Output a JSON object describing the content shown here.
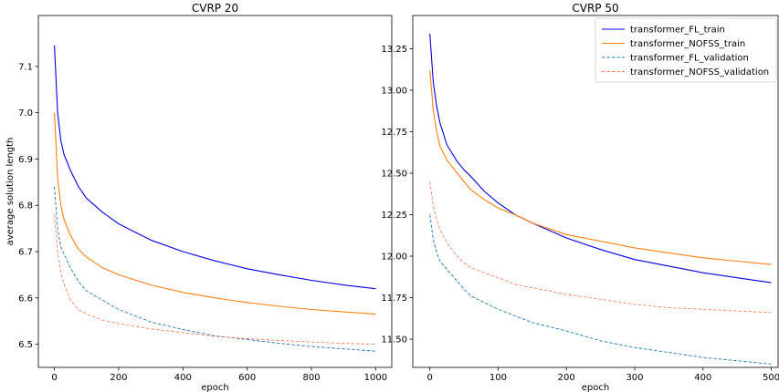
{
  "colors": {
    "fl_train": "#0000dd",
    "nofss_train": "#ff7f0e",
    "fl_validation": "#1f77b4",
    "nofss_validation": "#f4845f"
  },
  "chart_data": [
    {
      "type": "line",
      "title": "CVRP 20",
      "xlabel": "epoch",
      "ylabel": "average solution length",
      "xlim": [
        -50,
        1050
      ],
      "ylim": [
        6.45,
        7.21
      ],
      "xticks": [
        0,
        200,
        400,
        600,
        800,
        1000
      ],
      "yticks": [
        6.5,
        6.6,
        6.7,
        6.8,
        6.9,
        7.0,
        7.1
      ],
      "ytick_labels": [
        "6.5",
        "6.6",
        "6.7",
        "6.8",
        "6.9",
        "7.0",
        "7.1"
      ],
      "grid": false,
      "series": [
        {
          "name": "transformer_FL_train",
          "key": "fl_train",
          "style": "solid",
          "x": [
            0,
            10,
            20,
            30,
            50,
            75,
            100,
            150,
            200,
            300,
            400,
            500,
            600,
            700,
            800,
            900,
            1000
          ],
          "y": [
            7.145,
            7.0,
            6.94,
            6.91,
            6.875,
            6.84,
            6.815,
            6.785,
            6.76,
            6.725,
            6.7,
            6.68,
            6.663,
            6.65,
            6.638,
            6.628,
            6.62
          ]
        },
        {
          "name": "transformer_NOFSS_train",
          "key": "nofss_train",
          "style": "solid",
          "x": [
            0,
            10,
            20,
            30,
            50,
            75,
            100,
            150,
            200,
            300,
            400,
            500,
            600,
            700,
            800,
            900,
            1000
          ],
          "y": [
            7.0,
            6.86,
            6.8,
            6.77,
            6.735,
            6.705,
            6.688,
            6.665,
            6.65,
            6.628,
            6.612,
            6.6,
            6.59,
            6.582,
            6.575,
            6.57,
            6.565
          ]
        },
        {
          "name": "transformer_FL_validation",
          "key": "fl_validation",
          "style": "dashed",
          "x": [
            0,
            10,
            20,
            30,
            50,
            75,
            100,
            150,
            200,
            300,
            400,
            500,
            600,
            700,
            800,
            900,
            1000
          ],
          "y": [
            6.84,
            6.75,
            6.71,
            6.695,
            6.665,
            6.635,
            6.615,
            6.595,
            6.575,
            6.548,
            6.532,
            6.518,
            6.51,
            6.502,
            6.495,
            6.49,
            6.485
          ]
        },
        {
          "name": "transformer_NOFSS_validation",
          "key": "nofss_validation",
          "style": "dashed",
          "x": [
            0,
            10,
            20,
            30,
            50,
            75,
            100,
            150,
            200,
            300,
            400,
            500,
            600,
            700,
            800,
            900,
            1000
          ],
          "y": [
            6.78,
            6.7,
            6.655,
            6.63,
            6.595,
            6.575,
            6.565,
            6.552,
            6.545,
            6.533,
            6.525,
            6.517,
            6.512,
            6.508,
            6.505,
            6.502,
            6.5
          ]
        }
      ]
    },
    {
      "type": "line",
      "title": "CVRP 50",
      "xlabel": "epoch",
      "ylabel": "",
      "xlim": [
        -25,
        510
      ],
      "ylim": [
        11.33,
        13.45
      ],
      "xticks": [
        0,
        100,
        200,
        300,
        400,
        500
      ],
      "yticks": [
        11.5,
        11.75,
        12.0,
        12.25,
        12.5,
        12.75,
        13.0,
        13.25
      ],
      "ytick_labels": [
        "11.50",
        "11.75",
        "12.00",
        "12.25",
        "12.50",
        "12.75",
        "13.00",
        "13.25"
      ],
      "grid": false,
      "legend": "top-right",
      "series": [
        {
          "name": "transformer_FL_train",
          "key": "fl_train",
          "style": "solid",
          "x": [
            0,
            5,
            10,
            15,
            25,
            40,
            50,
            60,
            80,
            100,
            125,
            150,
            200,
            250,
            300,
            350,
            400,
            450,
            500
          ],
          "y": [
            13.34,
            13.05,
            12.9,
            12.8,
            12.67,
            12.57,
            12.52,
            12.48,
            12.39,
            12.32,
            12.25,
            12.2,
            12.11,
            12.04,
            11.98,
            11.94,
            11.9,
            11.87,
            11.84
          ]
        },
        {
          "name": "transformer_NOFSS_train",
          "key": "nofss_train",
          "style": "solid",
          "x": [
            0,
            5,
            10,
            15,
            25,
            40,
            50,
            60,
            80,
            100,
            125,
            150,
            200,
            250,
            300,
            350,
            400,
            450,
            500
          ],
          "y": [
            13.12,
            12.88,
            12.75,
            12.66,
            12.58,
            12.5,
            12.45,
            12.4,
            12.34,
            12.29,
            12.25,
            12.2,
            12.13,
            12.09,
            12.05,
            12.02,
            11.99,
            11.97,
            11.95
          ]
        },
        {
          "name": "transformer_FL_validation",
          "key": "fl_validation",
          "style": "dashed",
          "x": [
            0,
            5,
            10,
            15,
            25,
            40,
            50,
            60,
            80,
            100,
            125,
            150,
            200,
            250,
            300,
            350,
            400,
            450,
            500
          ],
          "y": [
            12.25,
            12.1,
            12.02,
            11.97,
            11.92,
            11.85,
            11.8,
            11.76,
            11.72,
            11.68,
            11.64,
            11.6,
            11.55,
            11.49,
            11.45,
            11.42,
            11.39,
            11.37,
            11.35
          ]
        },
        {
          "name": "transformer_NOFSS_validation",
          "key": "nofss_validation",
          "style": "dashed",
          "x": [
            0,
            5,
            10,
            15,
            25,
            40,
            50,
            60,
            80,
            100,
            125,
            150,
            200,
            250,
            300,
            350,
            400,
            450,
            500
          ],
          "y": [
            12.45,
            12.3,
            12.22,
            12.16,
            12.08,
            12.0,
            11.96,
            11.93,
            11.9,
            11.87,
            11.83,
            11.81,
            11.77,
            11.74,
            11.71,
            11.69,
            11.68,
            11.67,
            11.66
          ]
        }
      ]
    }
  ]
}
